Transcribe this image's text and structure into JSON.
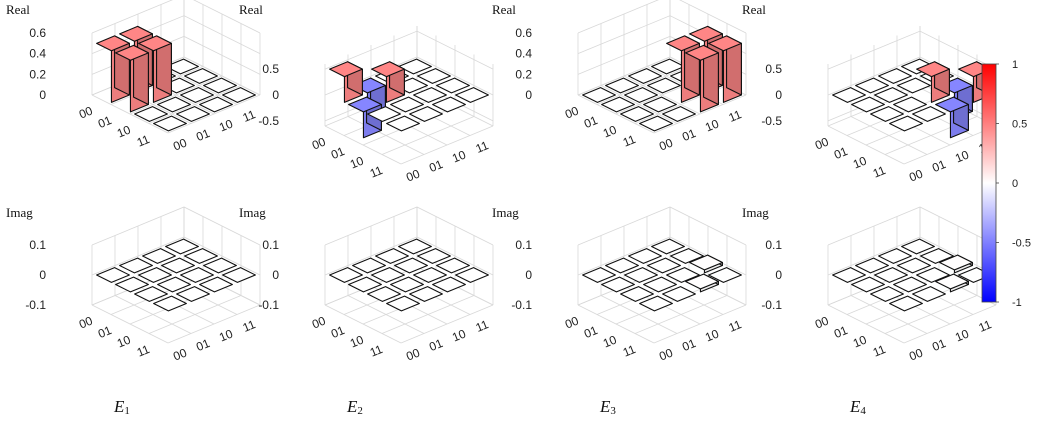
{
  "chart_data": {
    "type": "bar3d",
    "basis_labels": [
      "00",
      "01",
      "10",
      "11"
    ],
    "colormap": {
      "min": -1,
      "max": 1,
      "ticks": [
        "1",
        "0.5",
        "0",
        "-0.5",
        "-1"
      ],
      "low": "#0000ff",
      "mid": "#ffffff",
      "high": "#ff0000"
    },
    "panels": [
      {
        "name": "E",
        "sub": "1",
        "real": {
          "title": "Real",
          "ticks": [
            "0.6",
            "0.4",
            "0.2",
            "0"
          ],
          "tickvals": [
            0.6,
            0.4,
            0.2,
            0
          ],
          "zlim": [
            0,
            0.6
          ],
          "matrix": [
            [
              0.5,
              0.5,
              0,
              0
            ],
            [
              0.5,
              0.5,
              0,
              0
            ],
            [
              0,
              0,
              0,
              0
            ],
            [
              0,
              0,
              0,
              0
            ]
          ]
        },
        "imag": {
          "title": "Imag",
          "ticks": [
            "0.1",
            "0",
            "-0.1"
          ],
          "tickvals": [
            0.1,
            0,
            -0.1
          ],
          "zlim": [
            -0.1,
            0.1
          ],
          "matrix": [
            [
              0,
              0,
              0,
              0
            ],
            [
              0,
              0,
              0,
              0
            ],
            [
              0,
              0,
              0,
              0
            ],
            [
              0,
              0,
              0,
              0
            ]
          ]
        }
      },
      {
        "name": "E",
        "sub": "2",
        "real": {
          "title": "Real",
          "ticks": [
            "0.5",
            "0",
            "-0.5"
          ],
          "tickvals": [
            0.5,
            0,
            -0.5
          ],
          "zlim": [
            -0.6,
            0.6
          ],
          "matrix": [
            [
              0.5,
              -0.5,
              0,
              0
            ],
            [
              -0.5,
              0.5,
              0,
              0
            ],
            [
              0,
              0,
              0,
              0
            ],
            [
              0,
              0,
              0,
              0
            ]
          ]
        },
        "imag": {
          "title": "Imag",
          "ticks": [
            "0.1",
            "0",
            "-0.1"
          ],
          "tickvals": [
            0.1,
            0,
            -0.1
          ],
          "zlim": [
            -0.1,
            0.1
          ],
          "matrix": [
            [
              0,
              0,
              0,
              0
            ],
            [
              0,
              0,
              0,
              0
            ],
            [
              0,
              0,
              0,
              0
            ],
            [
              0,
              0,
              0,
              0
            ]
          ]
        }
      },
      {
        "name": "E",
        "sub": "3",
        "real": {
          "title": "Real",
          "ticks": [
            "0.6",
            "0.4",
            "0.2",
            "0"
          ],
          "tickvals": [
            0.6,
            0.4,
            0.2,
            0
          ],
          "zlim": [
            0,
            0.6
          ],
          "matrix": [
            [
              0,
              0,
              0,
              0
            ],
            [
              0,
              0,
              0,
              0
            ],
            [
              0,
              0,
              0.5,
              0.5
            ],
            [
              0,
              0,
              0.5,
              0.5
            ]
          ]
        },
        "imag": {
          "title": "Imag",
          "ticks": [
            "0.1",
            "0",
            "-0.1"
          ],
          "tickvals": [
            0.1,
            0,
            -0.1
          ],
          "zlim": [
            -0.1,
            0.1
          ],
          "matrix": [
            [
              0,
              0,
              0,
              0
            ],
            [
              0,
              0,
              0,
              0
            ],
            [
              0,
              0,
              0,
              0.01
            ],
            [
              0,
              0,
              0.01,
              0
            ]
          ]
        }
      },
      {
        "name": "E",
        "sub": "4",
        "real": {
          "title": "Real",
          "ticks": [
            "0.5",
            "0",
            "-0.5"
          ],
          "tickvals": [
            0.5,
            0,
            -0.5
          ],
          "zlim": [
            -0.6,
            0.6
          ],
          "matrix": [
            [
              0,
              0,
              0,
              0
            ],
            [
              0,
              0,
              0,
              0
            ],
            [
              0,
              0,
              0.5,
              -0.5
            ],
            [
              0,
              0,
              -0.5,
              0.5
            ]
          ]
        },
        "imag": {
          "title": "Imag",
          "ticks": [
            "0.1",
            "0",
            "-0.1"
          ],
          "tickvals": [
            0.1,
            0,
            -0.1
          ],
          "zlim": [
            -0.1,
            0.1
          ],
          "matrix": [
            [
              0,
              0,
              0,
              0
            ],
            [
              0,
              0,
              0,
              0
            ],
            [
              0,
              0,
              0,
              0.01
            ],
            [
              0,
              0,
              0.01,
              0
            ]
          ]
        }
      }
    ]
  }
}
